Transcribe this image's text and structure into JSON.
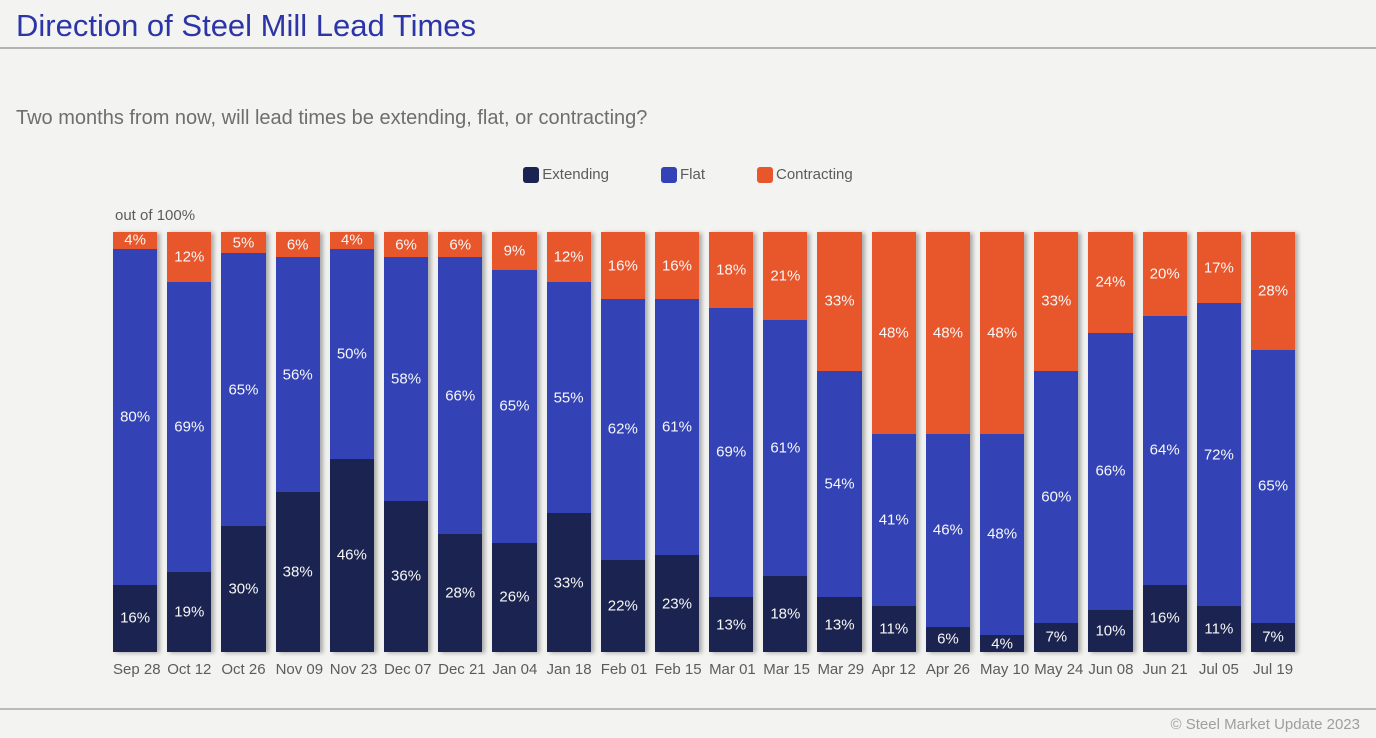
{
  "page": {
    "title": "Direction of Steel Mill Lead Times",
    "subtitle": "Two months from now, will lead times be extending, flat, or contracting?",
    "axis_note": "out of 100%",
    "footer": "© Steel Market Update 2023"
  },
  "colors": {
    "extending": "#1b2450",
    "flat": "#3343b6",
    "contracting": "#e8562c",
    "title": "#2c35a8",
    "background": "#f3f3f1"
  },
  "legend": {
    "items": [
      {
        "label": "Extending",
        "color": "#1b2450"
      },
      {
        "label": "Flat",
        "color": "#3343b6"
      },
      {
        "label": "Contracting",
        "color": "#e8562c"
      }
    ]
  },
  "chart_data": {
    "type": "bar",
    "stacked": true,
    "unit": "%",
    "title": "Direction of Steel Mill Lead Times",
    "xlabel": "",
    "ylabel": "",
    "ylim": [
      0,
      100
    ],
    "legend_position": "top",
    "grid": false,
    "categories": [
      "Sep 28",
      "Oct 12",
      "Oct 26",
      "Nov 09",
      "Nov 23",
      "Dec 07",
      "Dec 21",
      "Jan 04",
      "Jan 18",
      "Feb 01",
      "Feb 15",
      "Mar 01",
      "Mar 15",
      "Mar 29",
      "Apr 12",
      "Apr 26",
      "May 10",
      "May 24",
      "Jun 08",
      "Jun 21",
      "Jul 05",
      "Jul 19"
    ],
    "series": [
      {
        "name": "Extending",
        "color": "#1b2450",
        "values": [
          16,
          19,
          30,
          38,
          46,
          36,
          28,
          26,
          33,
          22,
          23,
          13,
          18,
          13,
          11,
          6,
          4,
          7,
          10,
          16,
          11,
          7
        ]
      },
      {
        "name": "Flat",
        "color": "#3343b6",
        "values": [
          80,
          69,
          65,
          56,
          50,
          58,
          66,
          65,
          55,
          62,
          61,
          69,
          61,
          54,
          41,
          46,
          48,
          60,
          66,
          64,
          72,
          65
        ]
      },
      {
        "name": "Contracting",
        "color": "#e8562c",
        "values": [
          4,
          12,
          5,
          6,
          4,
          6,
          6,
          9,
          12,
          16,
          16,
          18,
          21,
          33,
          48,
          48,
          48,
          33,
          24,
          20,
          17,
          28
        ]
      }
    ]
  }
}
